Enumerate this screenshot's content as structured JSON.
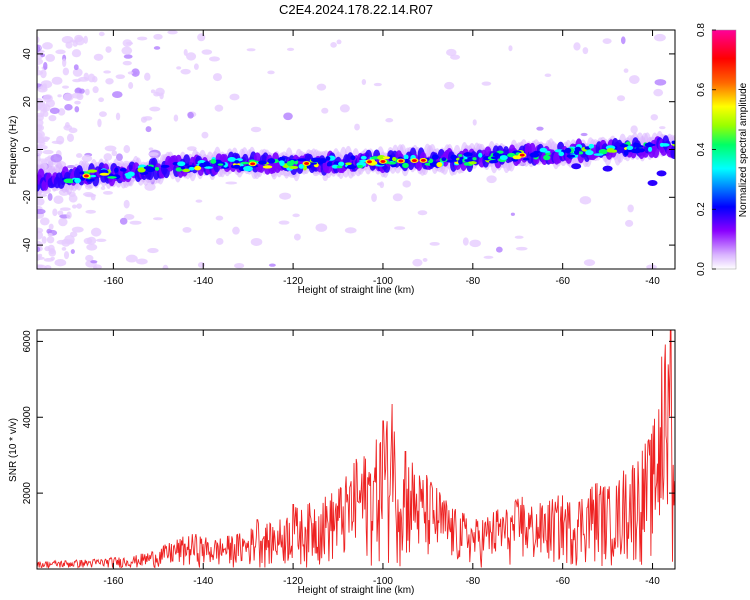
{
  "title": "C2E4.2024.178.22.14.R07",
  "spectrogram": {
    "type": "heatmap",
    "xlabel": "Height of straight line (km)",
    "ylabel": "Frequency (Hz)",
    "xlim": [
      -177,
      -35
    ],
    "ylim": [
      -50,
      50
    ],
    "xticks": [
      -160,
      -140,
      -120,
      -100,
      -80,
      -60,
      -40
    ],
    "yticks": [
      -40,
      -20,
      0,
      20,
      40
    ],
    "grid": false,
    "band_center_line": [
      [
        -177,
        -13
      ],
      [
        -160,
        -10
      ],
      [
        -140,
        -6
      ],
      [
        -120,
        -6
      ],
      [
        -100,
        -5
      ],
      [
        -80,
        -4
      ],
      [
        -60,
        -1
      ],
      [
        -40,
        1
      ]
    ],
    "colorbar": {
      "label": "Normalized spectral amplitude",
      "range": [
        0,
        0.8
      ],
      "ticks": [
        "0.0",
        "0.2",
        "0.4",
        "0.6",
        "0.8"
      ],
      "colors": [
        "#ffffff",
        "#d9b3ff",
        "#8a00ff",
        "#0000ff",
        "#00ffff",
        "#00ff66",
        "#99ff00",
        "#ffff00",
        "#ff6600",
        "#ff0000",
        "#ff0099"
      ]
    }
  },
  "chart_data": {
    "type": "line",
    "xlabel": "Height of straight line (km)",
    "ylabel": "SNR (10 * v/v)",
    "xlim": [
      -177,
      -35
    ],
    "ylim": [
      0,
      6300
    ],
    "xticks": [
      -160,
      -140,
      -120,
      -100,
      -80,
      -60,
      -40
    ],
    "yticks": [
      2000,
      4000,
      6000
    ],
    "grid": false,
    "color": "#ee2222",
    "envelope": {
      "x": [
        -177,
        -165,
        -155,
        -150,
        -146,
        -142,
        -138,
        -134,
        -130,
        -128,
        -125,
        -122,
        -120,
        -118,
        -115,
        -112,
        -110,
        -108,
        -106,
        -104,
        -102,
        -100,
        -98,
        -96,
        -94,
        -92,
        -90,
        -88,
        -86,
        -84,
        -82,
        -80,
        -78,
        -76,
        -74,
        -72,
        -70,
        -68,
        -66,
        -64,
        -62,
        -60,
        -58,
        -56,
        -54,
        -52,
        -50,
        -48,
        -46,
        -44,
        -42,
        -40,
        -38,
        -37,
        -36,
        -35
      ],
      "y": [
        200,
        260,
        360,
        550,
        800,
        950,
        800,
        900,
        1000,
        1300,
        1200,
        1400,
        1700,
        1600,
        1900,
        2000,
        2200,
        2500,
        2900,
        3100,
        3300,
        3800,
        4350,
        2800,
        3100,
        2600,
        2500,
        2200,
        1900,
        1600,
        1500,
        1300,
        1400,
        1500,
        1700,
        1600,
        1900,
        1800,
        1700,
        1800,
        1900,
        2000,
        1800,
        2000,
        2300,
        2400,
        2200,
        2300,
        2800,
        3000,
        3300,
        3700,
        5500,
        6200,
        6300,
        3000
      ]
    },
    "spikes": [
      [
        -128,
        1300
      ],
      [
        -120,
        1700
      ],
      [
        -106,
        2900
      ],
      [
        -100,
        3900
      ],
      [
        -98,
        4350
      ],
      [
        -95,
        3100
      ],
      [
        -69,
        1900
      ],
      [
        -38,
        5600
      ],
      [
        -36,
        6300
      ]
    ]
  }
}
